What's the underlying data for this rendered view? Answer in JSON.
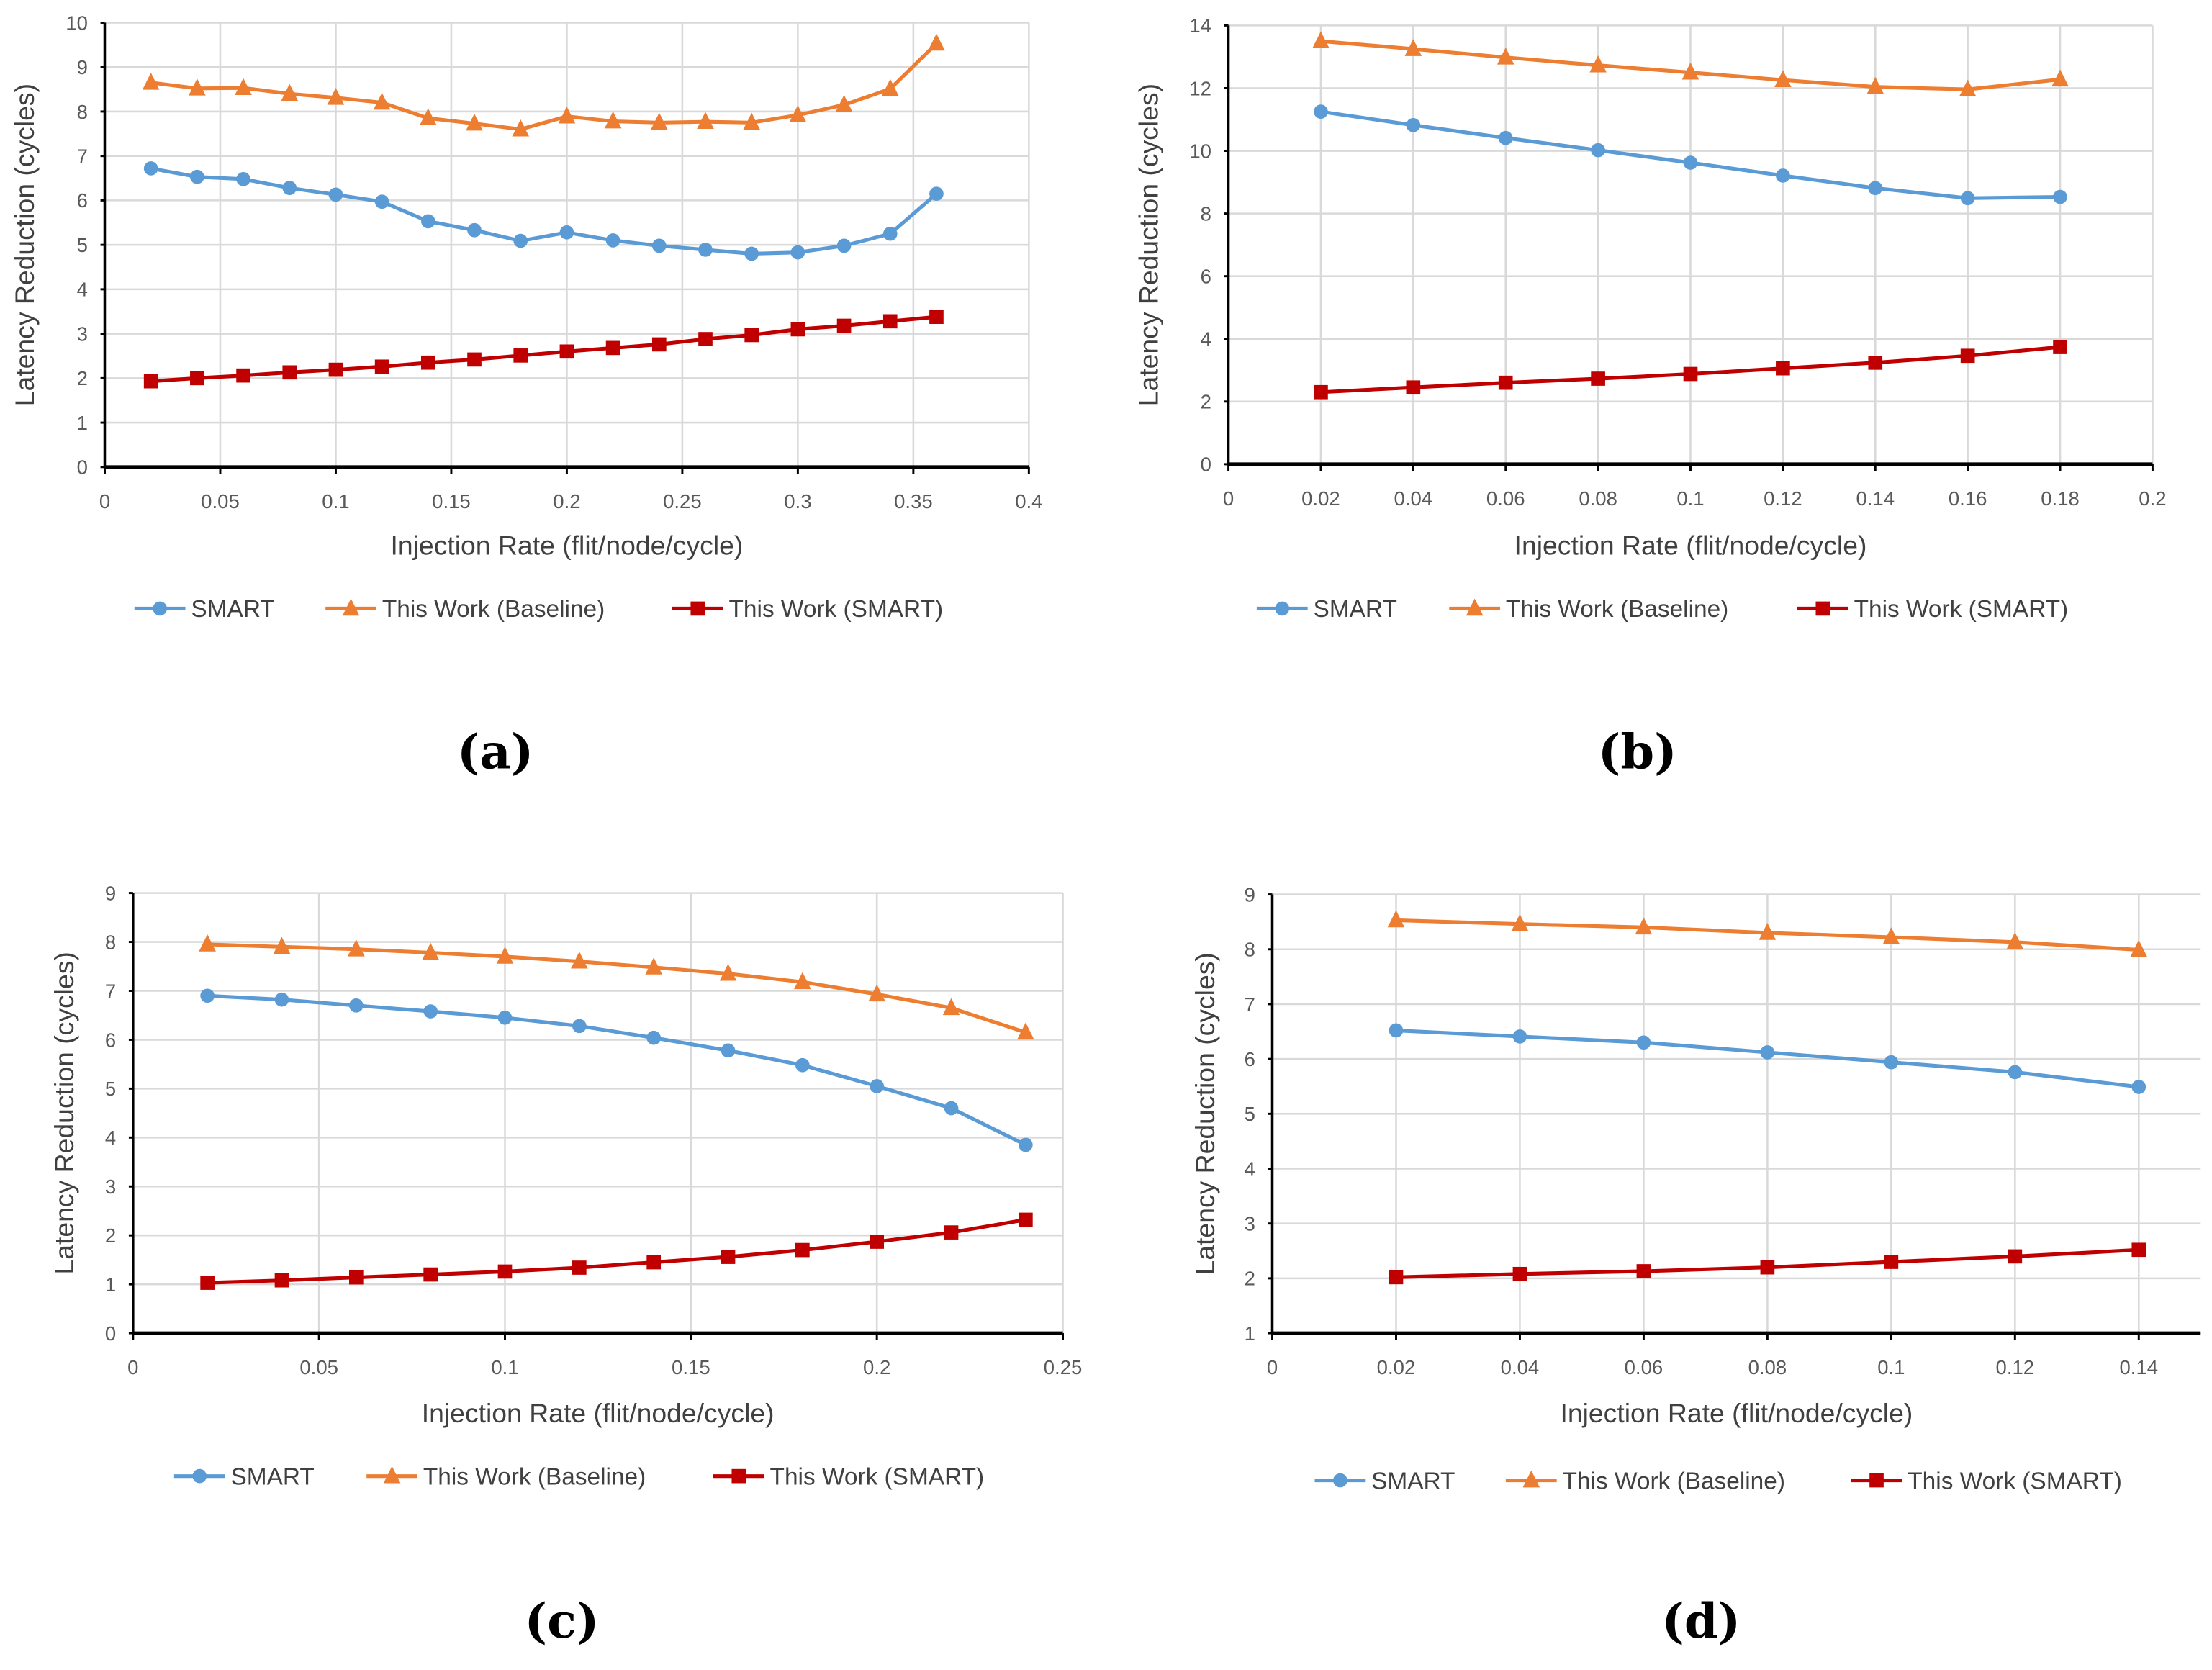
{
  "colors": {
    "smart": "#5B9BD5",
    "baseline": "#ED7D31",
    "this_smart": "#C00000",
    "grid": "#D9D9D9"
  },
  "chart_data": [
    {
      "type": "line",
      "caption": "(a)",
      "xlabel": "Injection Rate (flit/node/cycle)",
      "ylabel": "Latency Reduction (cycles)",
      "xlim": [
        0,
        0.4
      ],
      "ylim": [
        0,
        10
      ],
      "xticks": [
        "0",
        "0.05",
        "0.1",
        "0.15",
        "0.2",
        "0.25",
        "0.3",
        "0.35",
        "0.4"
      ],
      "yticks": [
        "0",
        "1",
        "2",
        "3",
        "4",
        "5",
        "6",
        "7",
        "8",
        "9",
        "10"
      ],
      "grid": true,
      "legend": "bottom",
      "x": [
        0.02,
        0.04,
        0.06,
        0.08,
        0.1,
        0.12,
        0.14,
        0.16,
        0.18,
        0.2,
        0.22,
        0.24,
        0.26,
        0.28,
        0.3,
        0.32,
        0.34,
        0.36
      ],
      "series": [
        {
          "name": "SMART",
          "marker": "circle",
          "values": [
            6.72,
            6.53,
            6.48,
            6.28,
            6.13,
            5.97,
            5.53,
            5.33,
            5.09,
            5.28,
            5.1,
            4.98,
            4.89,
            4.8,
            4.83,
            4.98,
            5.25,
            6.15
          ]
        },
        {
          "name": "This Work (Baseline)",
          "marker": "triangle",
          "values": [
            8.65,
            8.52,
            8.53,
            8.4,
            8.31,
            8.2,
            7.85,
            7.73,
            7.6,
            7.89,
            7.78,
            7.75,
            7.77,
            7.75,
            7.92,
            8.15,
            8.51,
            9.53
          ]
        },
        {
          "name": "This Work (SMART)",
          "marker": "square",
          "values": [
            1.93,
            2.0,
            2.06,
            2.13,
            2.19,
            2.26,
            2.35,
            2.42,
            2.51,
            2.6,
            2.68,
            2.76,
            2.88,
            2.97,
            3.1,
            3.18,
            3.28,
            3.38
          ]
        }
      ]
    },
    {
      "type": "line",
      "caption": "(b)",
      "xlabel": "Injection Rate (flit/node/cycle)",
      "ylabel": "Latency Reduction (cycles)",
      "xlim": [
        0,
        0.2
      ],
      "ylim": [
        0,
        14
      ],
      "xticks": [
        "0",
        "0.02",
        "0.04",
        "0.06",
        "0.08",
        "0.1",
        "0.12",
        "0.14",
        "0.16",
        "0.18",
        "0.2"
      ],
      "yticks": [
        "0",
        "2",
        "4",
        "6",
        "8",
        "10",
        "12",
        "14"
      ],
      "grid": true,
      "legend": "bottom",
      "x": [
        0.02,
        0.04,
        0.06,
        0.08,
        0.1,
        0.12,
        0.14,
        0.16,
        0.18
      ],
      "series": [
        {
          "name": "SMART",
          "marker": "circle",
          "values": [
            11.25,
            10.82,
            10.41,
            10.02,
            9.62,
            9.21,
            8.81,
            8.49,
            8.53
          ]
        },
        {
          "name": "This Work (Baseline)",
          "marker": "triangle",
          "values": [
            13.5,
            13.25,
            12.98,
            12.73,
            12.5,
            12.26,
            12.04,
            11.96,
            12.28
          ]
        },
        {
          "name": "This Work (SMART)",
          "marker": "square",
          "values": [
            2.3,
            2.45,
            2.6,
            2.73,
            2.88,
            3.06,
            3.24,
            3.46,
            3.74
          ]
        }
      ]
    },
    {
      "type": "line",
      "caption": "(c)",
      "xlabel": "Injection Rate (flit/node/cycle)",
      "ylabel": "Latency Reduction (cycles)",
      "xlim": [
        0,
        0.25
      ],
      "ylim": [
        0,
        9
      ],
      "xticks": [
        "0",
        "0.05",
        "0.1",
        "0.15",
        "0.2",
        "0.25"
      ],
      "yticks": [
        "0",
        "1",
        "2",
        "3",
        "4",
        "5",
        "6",
        "7",
        "8",
        "9"
      ],
      "grid": true,
      "legend": "bottom",
      "x": [
        0.02,
        0.04,
        0.06,
        0.08,
        0.1,
        0.12,
        0.14,
        0.16,
        0.18,
        0.2,
        0.22,
        0.24
      ],
      "series": [
        {
          "name": "SMART",
          "marker": "circle",
          "values": [
            6.9,
            6.82,
            6.7,
            6.58,
            6.45,
            6.28,
            6.04,
            5.78,
            5.48,
            5.05,
            4.6,
            3.85
          ]
        },
        {
          "name": "This Work (Baseline)",
          "marker": "triangle",
          "values": [
            7.95,
            7.9,
            7.85,
            7.78,
            7.7,
            7.6,
            7.48,
            7.35,
            7.18,
            6.93,
            6.65,
            6.15
          ]
        },
        {
          "name": "This Work (SMART)",
          "marker": "square",
          "values": [
            1.03,
            1.08,
            1.14,
            1.2,
            1.26,
            1.34,
            1.45,
            1.56,
            1.7,
            1.87,
            2.06,
            2.32
          ]
        }
      ]
    },
    {
      "type": "line",
      "caption": "(d)",
      "xlabel": "Injection Rate (flit/node/cycle)",
      "ylabel": "Latency Reduction (cycles)",
      "xlim": [
        0,
        0.15
      ],
      "ylim": [
        1,
        9
      ],
      "xticks": [
        "0",
        "0.02",
        "0.04",
        "0.06",
        "0.08",
        "0.1",
        "0.12",
        "0.14"
      ],
      "yticks": [
        "1",
        "2",
        "3",
        "4",
        "5",
        "6",
        "7",
        "8",
        "9"
      ],
      "grid": true,
      "legend": "bottom",
      "x": [
        0.02,
        0.04,
        0.06,
        0.08,
        0.1,
        0.12,
        0.14
      ],
      "series": [
        {
          "name": "SMART",
          "marker": "circle",
          "values": [
            6.52,
            6.41,
            6.3,
            6.12,
            5.94,
            5.76,
            5.49
          ]
        },
        {
          "name": "This Work (Baseline)",
          "marker": "triangle",
          "values": [
            8.53,
            8.46,
            8.4,
            8.3,
            8.22,
            8.13,
            7.99
          ]
        },
        {
          "name": "This Work (SMART)",
          "marker": "square",
          "values": [
            2.02,
            2.08,
            2.13,
            2.2,
            2.3,
            2.4,
            2.52
          ]
        }
      ]
    }
  ]
}
